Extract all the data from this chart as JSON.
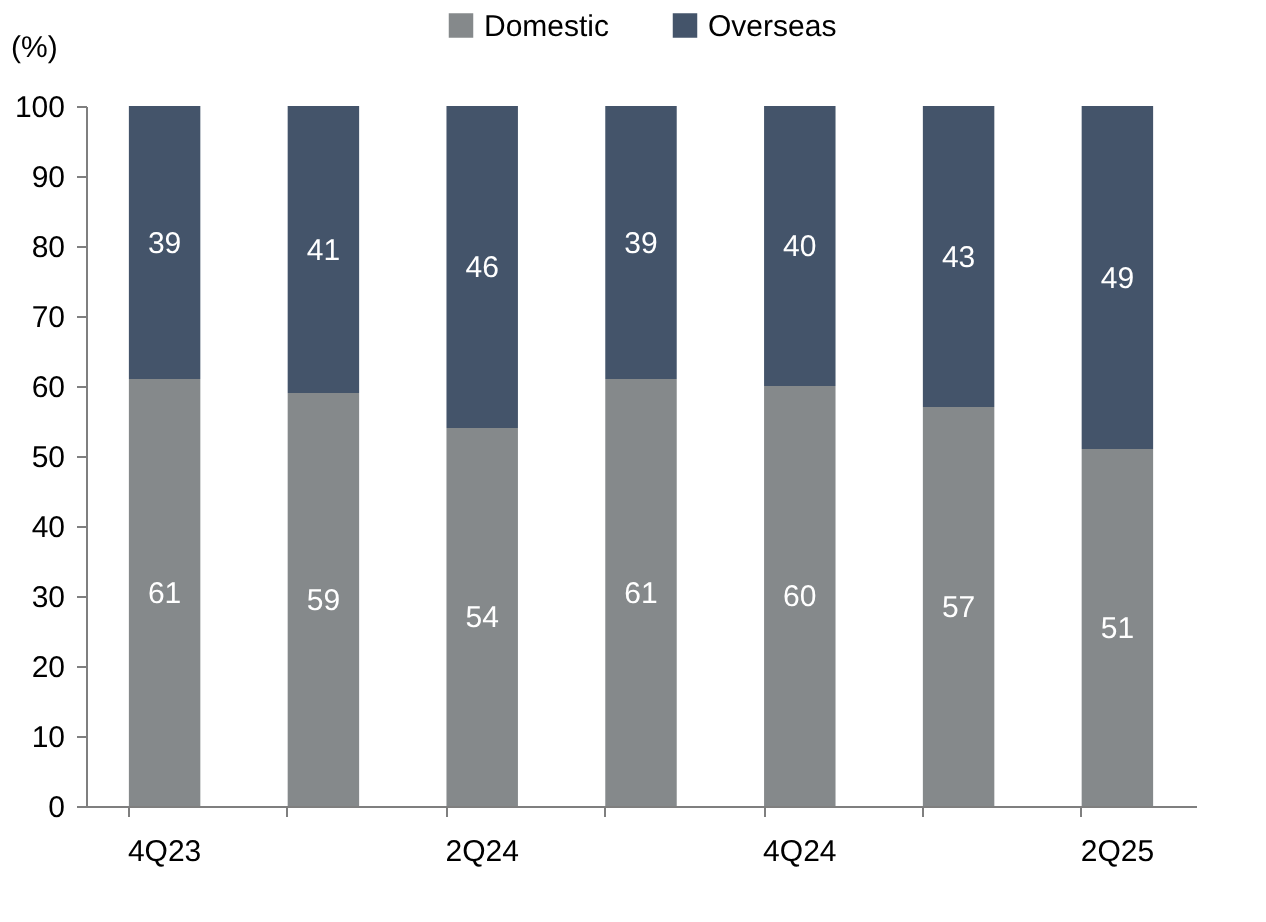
{
  "chart_data": {
    "type": "bar",
    "stacked": true,
    "ylabel": "(%)",
    "categories": [
      "4Q23",
      null,
      "2Q24",
      null,
      "4Q24",
      null,
      "2Q25"
    ],
    "series": [
      {
        "name": "Domestic",
        "color": "#85898b",
        "values": [
          61,
          59,
          54,
          61,
          60,
          57,
          51
        ]
      },
      {
        "name": "Overseas",
        "color": "#44546a",
        "values": [
          39,
          41,
          46,
          39,
          40,
          43,
          49
        ]
      }
    ],
    "ylim": [
      0,
      100
    ],
    "yticks": [
      0,
      10,
      20,
      30,
      40,
      50,
      60,
      70,
      80,
      90,
      100
    ],
    "data_labels": true,
    "grid": false,
    "legend": "top"
  }
}
